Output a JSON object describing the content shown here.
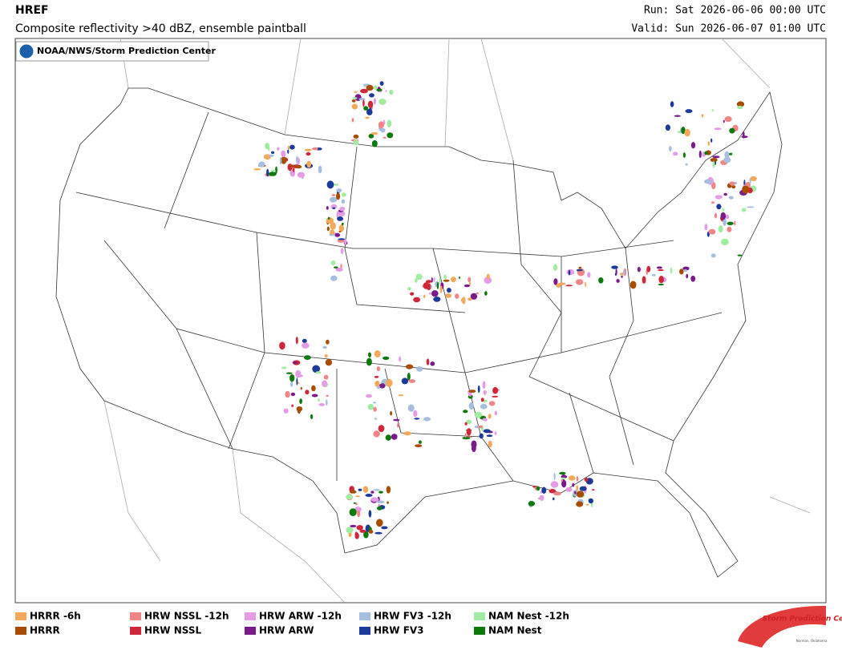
{
  "header": {
    "title": "HREF",
    "subtitle": "Composite reflectivity >40 dBZ, ensemble paintball",
    "run": "Run: Sat 2026-06-06 00:00 UTC",
    "valid": "Valid: Sun 2026-06-07 01:00 UTC"
  },
  "badge": "NOAA/NWS/Storm Prediction Center",
  "legend": [
    {
      "name": "HRRR -6h",
      "color": "#f4a95a"
    },
    {
      "name": "HRW NSSL -12h",
      "color": "#f08585"
    },
    {
      "name": "HRW ARW -12h",
      "color": "#e59be8"
    },
    {
      "name": "HRW FV3 -12h",
      "color": "#a6bfe0"
    },
    {
      "name": "NAM Nest -12h",
      "color": "#a0eca0"
    },
    {
      "name": "HRRR",
      "color": "#a84d00"
    },
    {
      "name": "HRW NSSL",
      "color": "#d0263a"
    },
    {
      "name": "HRW ARW",
      "color": "#7a1a8c"
    },
    {
      "name": "HRW FV3",
      "color": "#1c3a9a"
    },
    {
      "name": "NAM Nest",
      "color": "#0b7a0b"
    }
  ],
  "logo": {
    "name": "Storm Prediction Center",
    "place": "Norman, Oklahoma"
  }
}
